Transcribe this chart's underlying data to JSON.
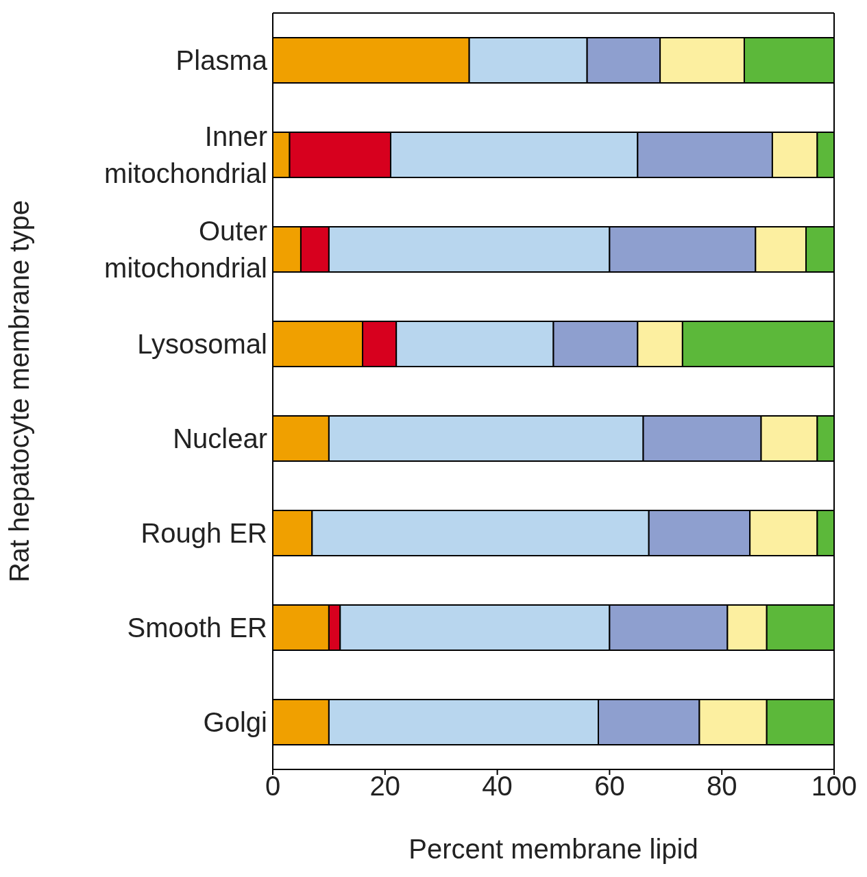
{
  "chart_data": {
    "type": "bar",
    "orientation": "horizontal",
    "stacked": true,
    "xlabel": "Percent membrane lipid",
    "ylabel": "Rat hepatocyte membrane type",
    "categories": [
      "Plasma",
      "Inner\nmitochondrial",
      "Outer\nmitochondrial",
      "Lysosomal",
      "Nuclear",
      "Rough ER",
      "Smooth ER",
      "Golgi"
    ],
    "series": [
      {
        "color": "#f0a000",
        "values": [
          35,
          3,
          5,
          16,
          10,
          7,
          10,
          10
        ]
      },
      {
        "color": "#d7001e",
        "values": [
          null,
          18,
          5,
          6,
          null,
          null,
          2,
          null
        ]
      },
      {
        "color": "#b8d6ee",
        "values": [
          21,
          44,
          50,
          28,
          56,
          60,
          48,
          48
        ]
      },
      {
        "color": "#8e9fcf",
        "values": [
          13,
          24,
          26,
          15,
          21,
          18,
          21,
          18
        ]
      },
      {
        "color": "#fcefa0",
        "values": [
          15,
          8,
          9,
          8,
          10,
          12,
          7,
          12
        ]
      },
      {
        "color": "#5cb83a",
        "values": [
          16,
          3,
          5,
          27,
          3,
          3,
          12,
          12
        ]
      }
    ],
    "xlim": [
      0,
      100
    ],
    "xticks": [
      0,
      20,
      40,
      60,
      80,
      100
    ],
    "grid": false
  }
}
